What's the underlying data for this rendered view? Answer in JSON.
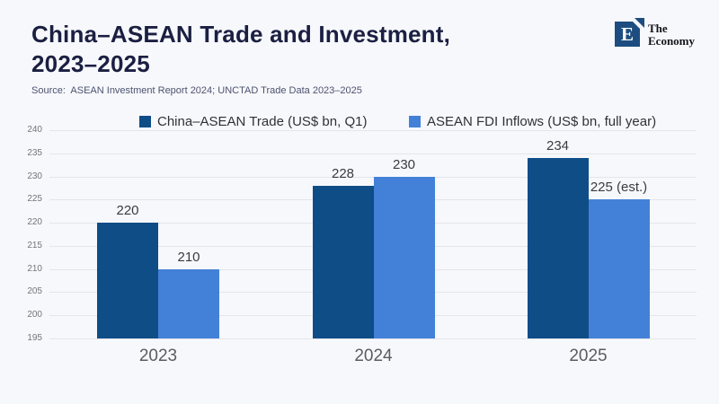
{
  "page": {
    "background": "#f7f8fb"
  },
  "header": {
    "title_line1": "China–ASEAN Trade and Investment,",
    "title_line2": "2023–2025",
    "source": "Source:  ASEAN Investment Report 2024; UNCTAD Trade Data 2023–2025"
  },
  "logo": {
    "monogram": "E",
    "name_line1": "The",
    "name_line2": "Economy",
    "brand_color": "#1d4d80"
  },
  "chart_data": {
    "type": "bar",
    "title": "China–ASEAN Trade and Investment, 2023–2025",
    "categories": [
      "2023",
      "2024",
      "2025"
    ],
    "series": [
      {
        "name": "China–ASEAN Trade (US$ bn, Q1)",
        "color": "#0f4d87",
        "values": [
          220,
          228,
          234
        ],
        "labels": [
          "220",
          "228",
          "234"
        ]
      },
      {
        "name": "ASEAN FDI Inflows (US$ bn, full year)",
        "color": "#4381d8",
        "values": [
          210,
          230,
          225
        ],
        "labels": [
          "210",
          "230",
          "225 (est.)"
        ]
      }
    ],
    "ylim": [
      195,
      240
    ],
    "yticks": [
      240,
      235,
      230,
      225,
      220,
      215,
      210,
      205,
      200,
      195
    ],
    "grid": true,
    "legend_position": "top",
    "gridline_color": "#e5e5ec"
  }
}
